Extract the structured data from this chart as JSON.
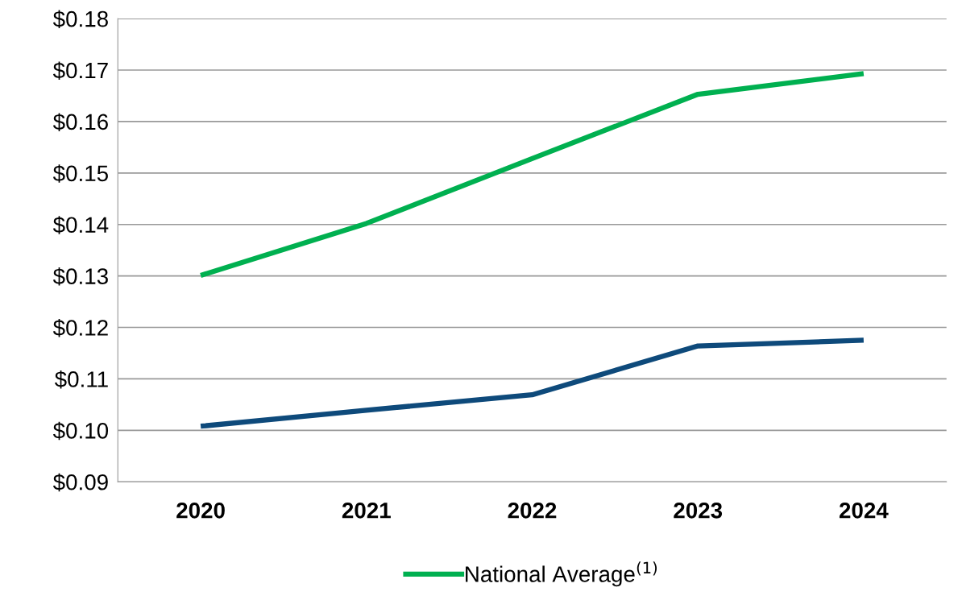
{
  "chart_data": {
    "type": "line",
    "categories": [
      "2020",
      "2021",
      "2022",
      "2023",
      "2024"
    ],
    "series": [
      {
        "color": "#0e4a7b",
        "values": [
          0.1008,
          0.1039,
          0.1069,
          0.1164,
          0.1175
        ]
      },
      {
        "name": "National Average$^{(1)}$",
        "color": "#00b050",
        "values": [
          0.1301,
          0.1402,
          0.1528,
          0.1653,
          0.1693
        ]
      }
    ],
    "ylim": [
      0.09,
      0.18
    ],
    "yticks": [
      {
        "value": 0.09,
        "label": "$0.09"
      },
      {
        "value": 0.1,
        "label": "$0.10"
      },
      {
        "value": 0.11,
        "label": "$0.11"
      },
      {
        "value": 0.12,
        "label": "$0.12"
      },
      {
        "value": 0.13,
        "label": "$0.13"
      },
      {
        "value": 0.14,
        "label": "$0.14"
      },
      {
        "value": 0.15,
        "label": "$0.15"
      },
      {
        "value": 0.16,
        "label": "$0.16"
      },
      {
        "value": 0.17,
        "label": "$0.17"
      },
      {
        "value": 0.18,
        "label": "$0.18"
      }
    ],
    "grid": "y",
    "legend": "bottom",
    "marker": "none",
    "line_style": "solid"
  }
}
